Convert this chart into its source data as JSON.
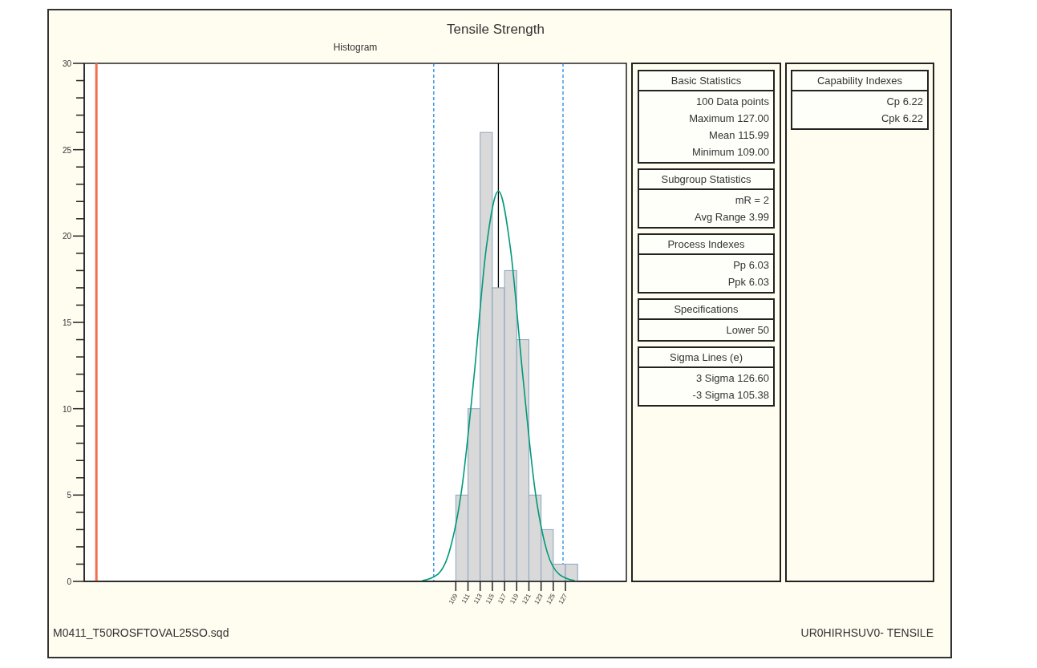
{
  "chart_data": {
    "type": "histogram",
    "title": "Tensile Strength",
    "subtitle": "Histogram",
    "series": [
      {
        "type": "histogram",
        "color": "#d9d9d9",
        "bins": [
          109,
          111,
          113,
          115,
          117,
          119,
          121,
          123,
          125,
          127,
          129
        ],
        "values": [
          5,
          10,
          26,
          17,
          18,
          14,
          5,
          3,
          1,
          1
        ]
      },
      {
        "type": "line",
        "color": "#00997a",
        "x": [
          103.5,
          106,
          108,
          110,
          112,
          114,
          116,
          118,
          120,
          122,
          124,
          126,
          128.5
        ],
        "values": [
          0.04,
          0.4,
          1.8,
          5.4,
          11.9,
          19.3,
          22.6,
          19.2,
          11.9,
          5.3,
          1.7,
          0.4,
          0.04
        ]
      }
    ],
    "xlim": [
      48,
      137
    ],
    "xticks": [
      109,
      111,
      113,
      115,
      117,
      119,
      121,
      123,
      125,
      127
    ],
    "ylim": [
      0,
      30
    ],
    "yticks": [
      0,
      {
        "value": 1,
        "label": null
      },
      {
        "value": 2,
        "label": null
      },
      {
        "value": 3,
        "label": null
      },
      {
        "value": 4,
        "label": null
      },
      5,
      {
        "value": 6,
        "label": null
      },
      {
        "value": 7,
        "label": null
      },
      {
        "value": 8,
        "label": null
      },
      {
        "value": 9,
        "label": null
      },
      10,
      {
        "value": 11,
        "label": null
      },
      {
        "value": 12,
        "label": null
      },
      {
        "value": 13,
        "label": null
      },
      {
        "value": 14,
        "label": null
      },
      15,
      {
        "value": 16,
        "label": null
      },
      {
        "value": 17,
        "label": null
      },
      {
        "value": 18,
        "label": null
      },
      {
        "value": 19,
        "label": null
      },
      20,
      {
        "value": 21,
        "label": null
      },
      {
        "value": 22,
        "label": null
      },
      {
        "value": 23,
        "label": null
      },
      {
        "value": 24,
        "label": null
      },
      25,
      {
        "value": 26,
        "label": null
      },
      {
        "value": 27,
        "label": null
      },
      {
        "value": 28,
        "label": null
      },
      {
        "value": 29,
        "label": null
      },
      30
    ],
    "ref_lines": [
      {
        "axis": "x",
        "value": 50,
        "color": "#f07050",
        "line_style": "solid"
      },
      {
        "axis": "x",
        "value": 115.99,
        "color": "#000000",
        "line_style": "solid"
      },
      {
        "axis": "x",
        "value": 105.38,
        "color": "#1e88e5",
        "line_style": "dashed"
      },
      {
        "axis": "x",
        "value": 126.6,
        "color": "#1e88e5",
        "line_style": "dashed"
      }
    ],
    "grid": false,
    "annotations": [
      "Basic Statistics",
      "100 Data points",
      "Maximum 127.00",
      "Mean 115.99",
      "Minimum 109.00",
      "Subgroup Statistics",
      "mR = 2",
      "Avg Range 3.99",
      "Process Indexes",
      "Pp 6.03",
      "Ppk 6.03",
      "Specifications",
      "Lower 50",
      "Sigma Lines (e)",
      "3 Sigma 126.60",
      "-3 Sigma 105.38",
      "Capability Indexes",
      "Cp 6.22",
      "Cpk 6.22",
      "M0411_T50ROSFTOVAL25SO.sqd",
      "UR0HIRHSUV0- TENSILE"
    ]
  }
}
